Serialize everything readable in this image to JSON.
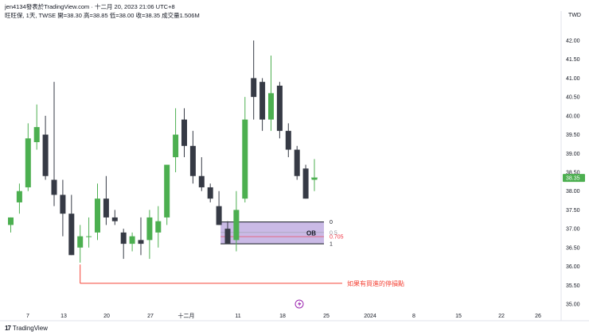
{
  "header": {
    "credit": "jen4134發表於TradingView.com · 十二月 20, 2023 21:06 UTC+8",
    "info": "旺旺保, 1天, TWSE  開=38.30  高=38.85  低=38.00  收=38.35  成交量1.506M"
  },
  "currency": "TWD",
  "footer": {
    "logo_text": "TradingView",
    "logo_mark": "17"
  },
  "colors": {
    "up": "#4caf50",
    "down": "#363a45",
    "ob_fill": "#b39ddb",
    "ob_border": "#131722",
    "stop_line": "#f44336",
    "price_tag": "#4caf50"
  },
  "chart_data": {
    "type": "candlestick",
    "ylim": [
      35.0,
      42.0
    ],
    "y_ticks": [
      "35.00",
      "35.50",
      "36.00",
      "36.50",
      "37.00",
      "37.50",
      "38.00",
      "38.50",
      "39.00",
      "39.50",
      "40.00",
      "40.50",
      "41.00",
      "41.50",
      "42.00"
    ],
    "x_tick_labels": [
      "7",
      "13",
      "20",
      "27",
      "十二月",
      "11",
      "18",
      "25",
      "2024",
      "8",
      "15",
      "22",
      "26"
    ],
    "last_price": "38.35",
    "candles": [
      {
        "o": 37.1,
        "h": 37.3,
        "l": 36.9,
        "c": 37.3
      },
      {
        "o": 37.7,
        "h": 38.2,
        "l": 37.4,
        "c": 38.0
      },
      {
        "o": 38.1,
        "h": 39.8,
        "l": 38.0,
        "c": 39.4
      },
      {
        "o": 39.3,
        "h": 40.3,
        "l": 39.1,
        "c": 39.7
      },
      {
        "o": 39.5,
        "h": 40.0,
        "l": 38.3,
        "c": 38.4
      },
      {
        "o": 38.3,
        "h": 40.9,
        "l": 37.6,
        "c": 37.9
      },
      {
        "o": 37.9,
        "h": 38.3,
        "l": 36.8,
        "c": 37.4
      },
      {
        "o": 37.4,
        "h": 37.9,
        "l": 36.3,
        "c": 36.3
      },
      {
        "o": 36.5,
        "h": 37.1,
        "l": 36.1,
        "c": 36.8
      },
      {
        "o": 36.8,
        "h": 37.3,
        "l": 36.5,
        "c": 36.8
      },
      {
        "o": 36.9,
        "h": 38.2,
        "l": 36.7,
        "c": 37.8
      },
      {
        "o": 37.8,
        "h": 38.4,
        "l": 37.1,
        "c": 37.3
      },
      {
        "o": 37.3,
        "h": 37.5,
        "l": 37.1,
        "c": 37.2
      },
      {
        "o": 36.9,
        "h": 37.0,
        "l": 36.2,
        "c": 36.6
      },
      {
        "o": 36.6,
        "h": 36.9,
        "l": 36.4,
        "c": 36.8
      },
      {
        "o": 36.7,
        "h": 37.3,
        "l": 36.3,
        "c": 36.6
      },
      {
        "o": 36.7,
        "h": 37.5,
        "l": 36.2,
        "c": 37.3
      },
      {
        "o": 36.9,
        "h": 37.6,
        "l": 36.5,
        "c": 37.2
      },
      {
        "o": 37.3,
        "h": 38.7,
        "l": 37.1,
        "c": 38.7
      },
      {
        "o": 38.9,
        "h": 40.2,
        "l": 38.5,
        "c": 39.5
      },
      {
        "o": 39.9,
        "h": 40.2,
        "l": 38.9,
        "c": 39.2
      },
      {
        "o": 39.2,
        "h": 39.6,
        "l": 38.2,
        "c": 38.4
      },
      {
        "o": 38.4,
        "h": 38.9,
        "l": 38.0,
        "c": 38.1
      },
      {
        "o": 38.1,
        "h": 38.2,
        "l": 37.7,
        "c": 37.8
      },
      {
        "o": 37.6,
        "h": 38.0,
        "l": 37.1,
        "c": 37.1
      },
      {
        "o": 37.0,
        "h": 37.2,
        "l": 36.6,
        "c": 36.6
      },
      {
        "o": 36.7,
        "h": 38.0,
        "l": 36.4,
        "c": 37.5
      },
      {
        "o": 37.8,
        "h": 40.5,
        "l": 37.7,
        "c": 39.9
      },
      {
        "o": 41.0,
        "h": 42.0,
        "l": 39.9,
        "c": 40.5
      },
      {
        "o": 40.9,
        "h": 41.0,
        "l": 39.6,
        "c": 39.9
      },
      {
        "o": 39.9,
        "h": 41.6,
        "l": 39.6,
        "c": 40.6
      },
      {
        "o": 40.8,
        "h": 40.9,
        "l": 39.4,
        "c": 39.6
      },
      {
        "o": 39.6,
        "h": 39.8,
        "l": 38.9,
        "c": 39.1
      },
      {
        "o": 39.1,
        "h": 39.2,
        "l": 38.3,
        "c": 38.4
      },
      {
        "o": 38.6,
        "h": 38.7,
        "l": 37.8,
        "c": 37.8
      },
      {
        "o": 38.3,
        "h": 38.85,
        "l": 38.0,
        "c": 38.35
      }
    ],
    "order_block": {
      "label": "OB",
      "levels": [
        {
          "text": "0",
          "price": 37.18
        },
        {
          "text": "0.5",
          "price": 36.9
        },
        {
          "text": "0.705",
          "price": 36.79
        },
        {
          "text": "1",
          "price": 36.6
        }
      ]
    },
    "stop_line": {
      "price": 35.55,
      "label": "如果有買進的停損點"
    },
    "event_icon": "lightning-event-icon"
  }
}
